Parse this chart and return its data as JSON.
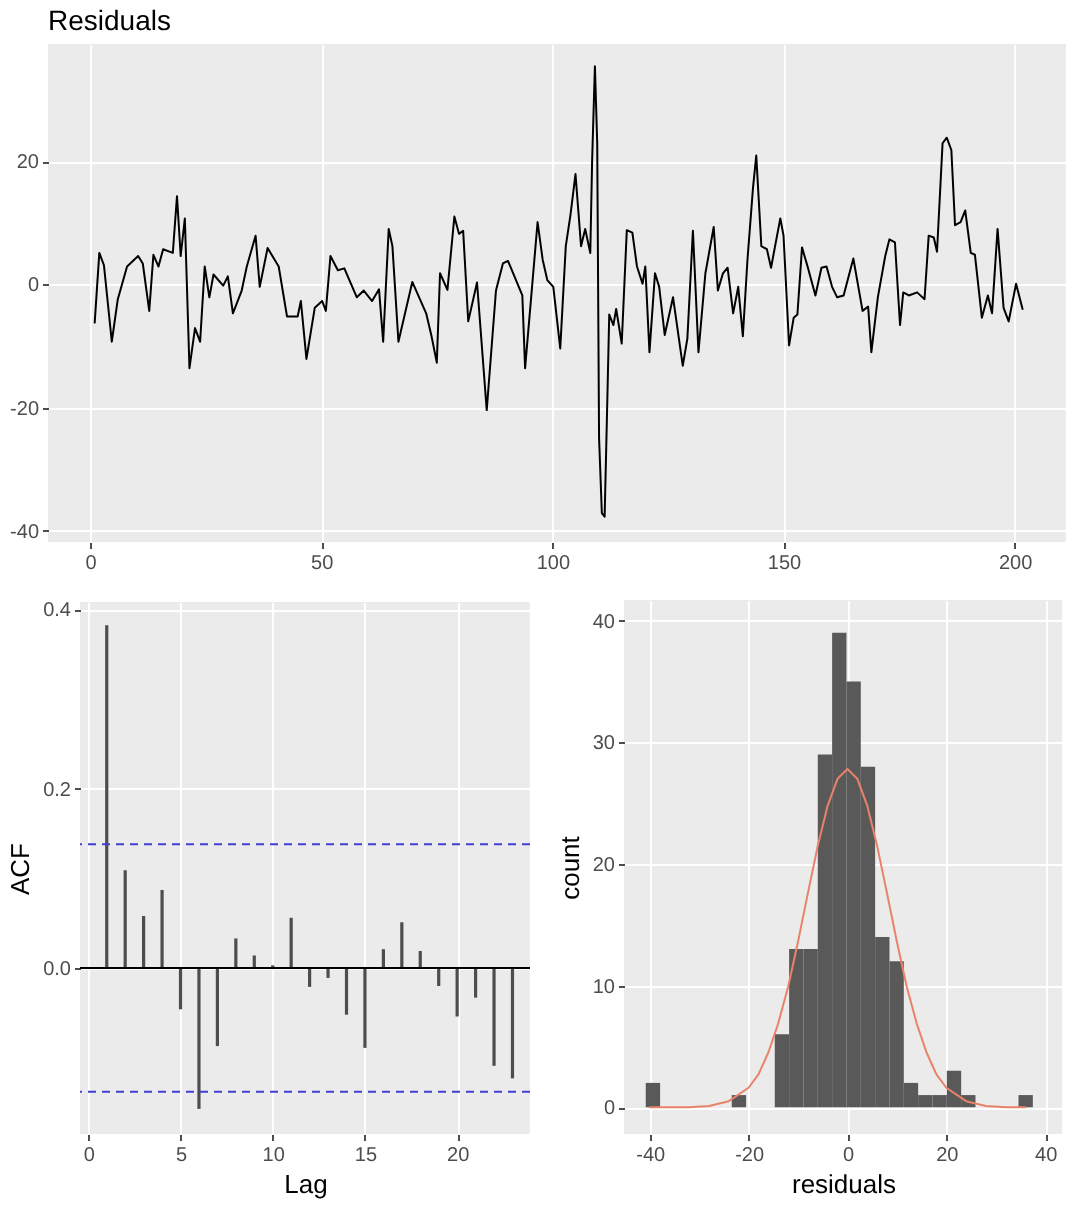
{
  "chart_data": [
    {
      "type": "line",
      "title": "Residuals",
      "color": "#000000",
      "grid": true,
      "x": [
        1,
        2,
        3,
        4.7,
        6,
        8,
        10.4,
        11.4,
        12.8,
        13.7,
        14.8,
        15.8,
        17.9,
        18.8,
        19.6,
        20.5,
        21.5,
        22.7,
        23.8,
        24.8,
        25.8,
        26.7,
        28.8,
        29.8,
        30.9,
        32.8,
        33.9,
        35.8,
        36.7,
        38.4,
        40.8,
        42.6,
        44.9,
        45.6,
        46.8,
        48.6,
        50.2,
        51,
        52,
        53.6,
        55,
        57.7,
        59.2,
        61,
        62.5,
        63.4,
        64.6,
        65.4,
        66.7,
        69.7,
        72.7,
        73.8,
        75,
        75.7,
        77.3,
        78.8,
        79.8,
        80.7,
        81.8,
        83.7,
        85.8,
        87.8,
        89.3,
        90.4,
        93.5,
        94.1,
        96.8,
        97.9,
        98.9,
        100.2,
        101.7,
        102.9,
        103.9,
        105,
        106.2,
        107.1,
        108.2,
        108.6,
        109.2,
        109.7,
        110.1,
        110.7,
        111.3,
        111.8,
        112.3,
        113.2,
        113.8,
        115,
        116.1,
        117.3,
        118.3,
        119.5,
        120.1,
        121,
        122.2,
        123.1,
        124.3,
        126.1,
        128.2,
        129.2,
        130.4,
        131.6,
        133.1,
        134.9,
        135.8,
        136.9,
        137.9,
        139.1,
        140.2,
        141.2,
        142.2,
        143.4,
        144.1,
        145.2,
        146.4,
        147.3,
        149.3,
        150,
        151.2,
        152.2,
        153,
        154,
        155.2,
        156.9,
        158.2,
        159.3,
        160.5,
        161.6,
        163,
        165.1,
        167.1,
        168.3,
        169,
        170.4,
        172,
        172.9,
        174.1,
        175.2,
        175.9,
        177.1,
        178.9,
        180.5,
        181.4,
        182.5,
        183.2,
        184.4,
        185.3,
        186.3,
        187.1,
        188.3,
        189.3,
        190.5,
        191.4,
        192.9,
        194.2,
        195.1,
        196.3,
        197.6,
        198.7,
        200.3,
        201.7
      ],
      "values": [
        -6.2,
        5.1,
        3.1,
        -9.3,
        -2.4,
        2.9,
        4.6,
        3.4,
        -4.3,
        4.8,
        2.9,
        5.7,
        5.1,
        14.3,
        4.6,
        10.7,
        -13.6,
        -7.1,
        -9.3,
        2.9,
        -2.1,
        1.6,
        -0.2,
        1.3,
        -4.7,
        -1,
        2.9,
        7.9,
        -0.4,
        5.9,
        2.9,
        -5.2,
        -5.2,
        -2.7,
        -12.1,
        -3.8,
        -2.7,
        -4.3,
        4.6,
        2.3,
        2.6,
        -2.1,
        -1,
        -2.7,
        -0.8,
        -9.3,
        9,
        6.2,
        -9.3,
        0.4,
        -4.7,
        -8.2,
        -12.7,
        1.8,
        -0.9,
        11,
        8.2,
        8.7,
        -6,
        0.3,
        -20.4,
        -1,
        3.4,
        3.8,
        -1.8,
        -13.6,
        10.1,
        4,
        0.7,
        -0.4,
        -10.4,
        6.2,
        11.2,
        17.9,
        6.2,
        9,
        5.1,
        20.1,
        35.4,
        22.9,
        -24.9,
        -37.1,
        -37.7,
        -21.6,
        -4.9,
        -6.6,
        -4,
        -9.6,
        8.8,
        8.4,
        2.9,
        0.1,
        2.9,
        -11,
        1.8,
        -0.4,
        -8.2,
        -2.1,
        -13.2,
        -8.8,
        8.7,
        -11,
        1.8,
        9.3,
        -1,
        1.8,
        2.7,
        -4.7,
        -0.4,
        -8.4,
        4,
        15.7,
        20.9,
        6.2,
        5.7,
        2.7,
        10.7,
        7.9,
        -9.9,
        -5.4,
        -4.9,
        6,
        2.9,
        -1.8,
        2.7,
        2.9,
        -0.4,
        -2.1,
        -1.8,
        4.2,
        -4.3,
        -3.6,
        -11,
        -2.1,
        4.6,
        7.3,
        6.8,
        -6.6,
        -1.3,
        -1.8,
        -1.3,
        -2.4,
        7.9,
        7.6,
        5.3,
        22.9,
        23.8,
        21.8,
        9.6,
        10.1,
        12,
        5.1,
        4.8,
        -5.4,
        -1.8,
        -4.7,
        9,
        -3.8,
        -6,
        0.1,
        -4
      ],
      "xlim": [
        -9.1,
        211.1
      ],
      "xticks": [
        0,
        50,
        100,
        150,
        200
      ],
      "ylim": [
        -41.8,
        39
      ],
      "yticks": [
        -40,
        -20,
        0,
        20
      ]
    },
    {
      "type": "bar",
      "xlabel": "Lag",
      "ylabel": "ACF",
      "color": "#4d4d4d",
      "grid": true,
      "x": [
        1,
        2,
        3,
        4,
        5,
        6,
        7,
        8,
        9,
        10,
        11,
        12,
        13,
        14,
        15,
        16,
        17,
        18,
        19,
        20,
        21,
        22,
        23
      ],
      "values": [
        0.382,
        0.109,
        0.058,
        0.087,
        -0.046,
        -0.157,
        -0.087,
        0.033,
        0.014,
        0.003,
        0.056,
        -0.021,
        -0.011,
        -0.052,
        -0.089,
        0.021,
        0.051,
        0.019,
        -0.02,
        -0.054,
        -0.033,
        -0.109,
        -0.123
      ],
      "ref_lines": [
        {
          "axis": "y",
          "value": 0,
          "color": "#000000"
        },
        {
          "axis": "y",
          "value": 0.138,
          "color": "#4040d0",
          "line_style": "dashed"
        },
        {
          "axis": "y",
          "value": -0.138,
          "color": "#4040d0",
          "line_style": "dashed"
        }
      ],
      "xlim": [
        -0.45,
        23.95
      ],
      "xticks": [
        0,
        5,
        10,
        15,
        20
      ],
      "ylim": [
        -0.185,
        0.408
      ],
      "yticks": [
        {
          "value": 0,
          "label": "0.0"
        },
        0.2,
        0.4
      ]
    },
    {
      "type": "histogram",
      "xlabel": "residuals",
      "ylabel": "count",
      "color": "#595959",
      "grid": true,
      "bins": [
        -40.8,
        -37.9,
        -35,
        -32.1,
        -29.2,
        -26.3,
        -23.4,
        -20.5,
        -17.6,
        -14.7,
        -11.8,
        -8.9,
        -6,
        -3.1,
        -0.2,
        2.7,
        5.6,
        8.5,
        11.4,
        14.3,
        17.2,
        20.1,
        23,
        25.9,
        28.8,
        31.7,
        34.6,
        37.5
      ],
      "values": [
        2,
        0,
        0,
        0,
        0,
        0,
        1,
        0,
        0,
        6,
        13,
        13,
        29,
        39,
        35,
        28,
        14,
        12,
        2,
        1,
        1,
        3,
        1,
        0,
        0,
        0,
        1
      ],
      "series": [
        {
          "type": "line",
          "color": "#e8836a",
          "x": [
            -40,
            -36,
            -32,
            -28,
            -24,
            -20,
            -18,
            -16,
            -14,
            -12,
            -10,
            -8,
            -6,
            -4,
            -2,
            0,
            2,
            4,
            6,
            8,
            10,
            12,
            14,
            16,
            18,
            20,
            24,
            28,
            32,
            36
          ],
          "values": [
            0,
            0,
            0,
            0.1,
            0.5,
            1.6,
            2.7,
            4.5,
            6.9,
            9.9,
            13.6,
            17.6,
            21.5,
            24.8,
            27,
            27.8,
            27,
            24.8,
            21.5,
            17.6,
            13.6,
            9.9,
            6.9,
            4.5,
            2.7,
            1.6,
            0.5,
            0.1,
            0,
            0
          ]
        }
      ],
      "xlim": [
        -45.2,
        43.4
      ],
      "xticks": [
        -40,
        -20,
        0,
        20,
        40
      ],
      "ylim": [
        -2.2,
        41.7
      ],
      "yticks": [
        0,
        10,
        20,
        30,
        40
      ]
    }
  ]
}
